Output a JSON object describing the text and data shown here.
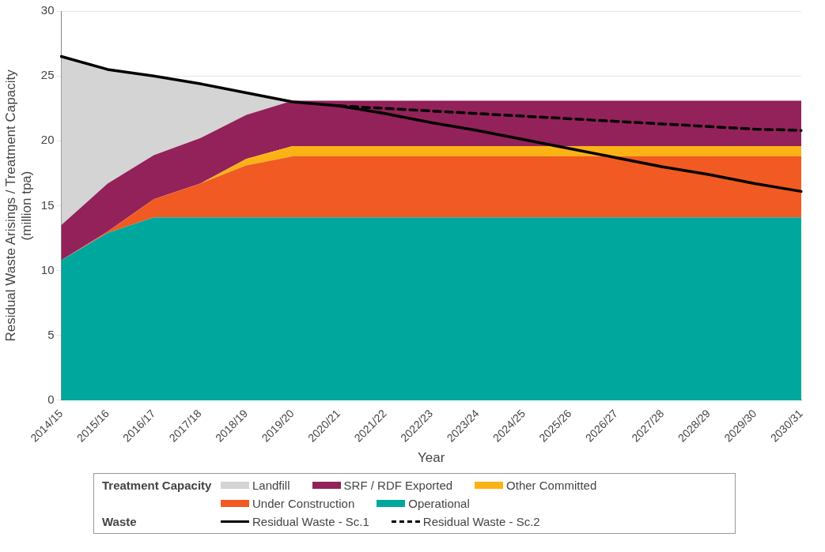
{
  "chart_data": {
    "type": "area",
    "stacked": true,
    "xlabel": "Year",
    "ylabel": "Residual Waste Arisings / Treatment Capacity (million tpa)",
    "categories": [
      "2014/15",
      "2015/16",
      "2016/17",
      "2017/18",
      "2018/19",
      "2019/20",
      "2020/21",
      "2021/22",
      "2022/23",
      "2023/24",
      "2024/25",
      "2025/26",
      "2026/27",
      "2027/28",
      "2028/29",
      "2029/30",
      "2030/31"
    ],
    "series": [
      {
        "name": "Operational",
        "color": "#00a79d",
        "values": [
          10.8,
          12.9,
          14.1,
          14.1,
          14.1,
          14.1,
          14.1,
          14.1,
          14.1,
          14.1,
          14.1,
          14.1,
          14.1,
          14.1,
          14.1,
          14.1,
          14.1
        ]
      },
      {
        "name": "Under Construction",
        "color": "#f15a22",
        "values": [
          0,
          0.1,
          1.4,
          2.6,
          4.0,
          4.7,
          4.7,
          4.7,
          4.7,
          4.7,
          4.7,
          4.7,
          4.7,
          4.7,
          4.7,
          4.7,
          4.7
        ]
      },
      {
        "name": "Other Committed",
        "color": "#fbb215",
        "values": [
          0,
          0,
          0,
          0,
          0.5,
          0.8,
          0.8,
          0.8,
          0.8,
          0.8,
          0.8,
          0.8,
          0.8,
          0.8,
          0.8,
          0.8,
          0.8
        ]
      },
      {
        "name": "SRF / RDF Exported",
        "color": "#93225a",
        "values": [
          2.7,
          3.7,
          3.4,
          3.5,
          3.4,
          3.5,
          3.5,
          3.5,
          3.5,
          3.5,
          3.5,
          3.5,
          3.5,
          3.5,
          3.5,
          3.5,
          3.5
        ]
      },
      {
        "name": "Landfill",
        "color": "#d4d4d4",
        "values": [
          13.0,
          8.8,
          6.1,
          4.2,
          1.7,
          0,
          null,
          null,
          null,
          null,
          null,
          null,
          null,
          null,
          null,
          null,
          null
        ]
      },
      {
        "name": "Residual Waste - Sc.1",
        "type": "line",
        "line_style": "solid",
        "color": "#000000",
        "values": [
          26.5,
          25.5,
          25.0,
          24.4,
          23.7,
          23.0,
          22.7,
          22.1,
          21.4,
          20.8,
          20.1,
          19.4,
          18.7,
          18.0,
          17.4,
          16.7,
          16.1
        ]
      },
      {
        "name": "Residual Waste - Sc.2",
        "type": "line",
        "line_style": "dashed",
        "color": "#000000",
        "values": [
          null,
          null,
          null,
          null,
          null,
          null,
          22.7,
          22.5,
          22.3,
          22.1,
          21.9,
          21.7,
          21.5,
          21.3,
          21.1,
          20.9,
          20.8
        ]
      }
    ],
    "ylim": [
      0,
      30
    ],
    "yticks": [
      0,
      5,
      10,
      15,
      20,
      25,
      30
    ],
    "grid": "y",
    "legend": "bottom",
    "marker": "none",
    "annotations": [
      "Treatment Capacity",
      "Waste"
    ]
  }
}
